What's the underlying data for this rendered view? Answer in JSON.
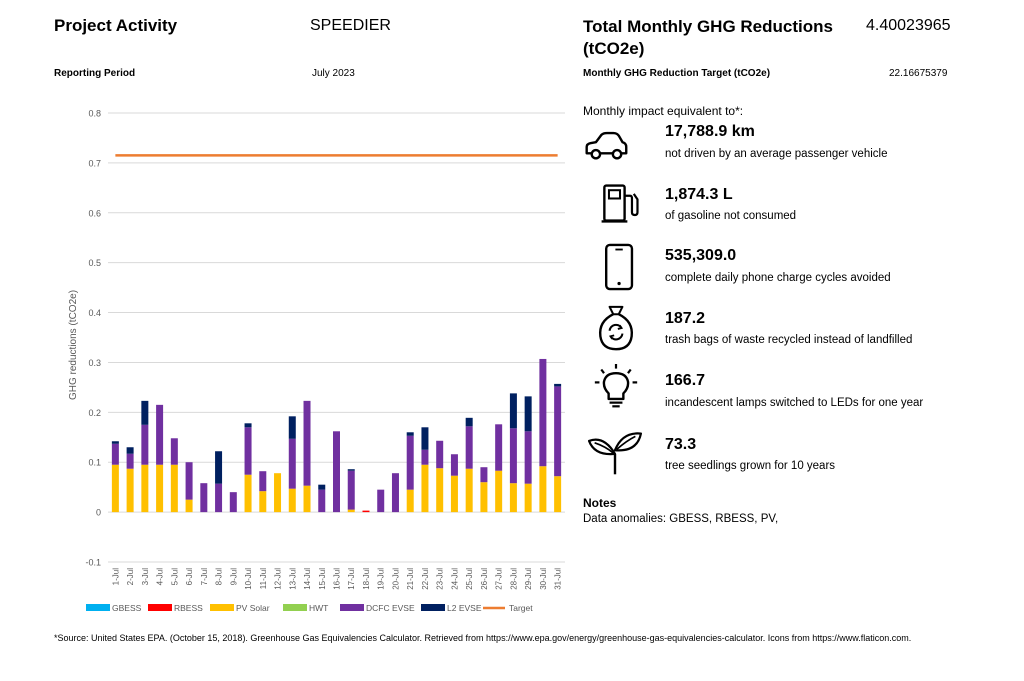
{
  "header": {
    "project_label": "Project Activity",
    "project_value": "SPEEDIER",
    "period_label": "Reporting Period",
    "period_value": "July 2023"
  },
  "summary": {
    "total_label": "Total Monthly GHG Reductions (tCO2e)",
    "total_value": "4.40023965",
    "target_label": "Monthly GHG Reduction Target (tCO2e)",
    "target_value": "22.16675379"
  },
  "impact": {
    "heading": "Monthly impact equivalent to*:",
    "items": [
      {
        "icon": "car-icon",
        "value": "17,788.9 km",
        "desc": "not driven by an average passenger vehicle"
      },
      {
        "icon": "fuel-pump-icon",
        "value": "1,874.3 L",
        "desc": "of gasoline not consumed"
      },
      {
        "icon": "phone-icon",
        "value": "535,309.0",
        "desc": "complete daily phone charge cycles avoided"
      },
      {
        "icon": "trash-bag-icon",
        "value": "187.2",
        "desc": "trash bags of waste recycled instead of landfilled"
      },
      {
        "icon": "light-bulb-icon",
        "value": "166.7",
        "desc": "incandescent lamps switched to LEDs for one year"
      },
      {
        "icon": "seedling-icon",
        "value": "73.3",
        "desc": "tree seedlings grown for 10 years"
      }
    ]
  },
  "notes": {
    "heading": "Notes",
    "text": "Data anomalies: GBESS, RBESS, PV,"
  },
  "footnote": "*Source: United States EPA. (October 15, 2018). Greenhouse Gas Equivalencies Calculator. Retrieved from https://www.epa.gov/energy/greenhouse-gas-equivalencies-calculator. Icons from https://www.flaticon.com.",
  "chart_data": {
    "type": "bar",
    "stacked": true,
    "ylabel": "GHG reductions (tCO2e)",
    "ylim": [
      -0.1,
      0.8
    ],
    "yticks": [
      "-0.1",
      "0",
      "0.1",
      "0.2",
      "0.3",
      "0.4",
      "0.5",
      "0.6",
      "0.7",
      "0.8"
    ],
    "grid": true,
    "legend_position": "bottom",
    "categories": [
      "1-Jul",
      "2-Jul",
      "3-Jul",
      "4-Jul",
      "5-Jul",
      "6-Jul",
      "7-Jul",
      "8-Jul",
      "9-Jul",
      "10-Jul",
      "11-Jul",
      "12-Jul",
      "13-Jul",
      "14-Jul",
      "15-Jul",
      "16-Jul",
      "17-Jul",
      "18-Jul",
      "19-Jul",
      "20-Jul",
      "21-Jul",
      "22-Jul",
      "23-Jul",
      "24-Jul",
      "25-Jul",
      "26-Jul",
      "27-Jul",
      "28-Jul",
      "29-Jul",
      "30-Jul",
      "31-Jul"
    ],
    "series": [
      {
        "name": "GBESS",
        "color": "#00b0f0",
        "values": [
          0,
          0,
          0,
          0,
          0,
          0,
          0,
          0,
          0,
          0,
          0,
          0,
          0,
          0,
          0,
          0,
          0,
          0,
          0,
          0,
          0,
          0,
          0,
          0,
          0,
          0,
          0,
          0,
          0,
          0,
          0
        ]
      },
      {
        "name": "RBESS",
        "color": "#ff0000",
        "values": [
          0,
          0,
          0,
          0,
          0,
          0,
          0,
          0,
          0,
          0,
          0,
          0,
          0,
          0,
          0,
          0,
          0,
          0.003,
          0,
          0,
          0,
          0,
          0,
          0,
          0,
          0,
          0,
          0,
          0,
          0,
          0
        ]
      },
      {
        "name": "PV Solar",
        "color": "#ffc000",
        "values": [
          0.095,
          0.087,
          0.095,
          0.095,
          0.095,
          0.025,
          0,
          0,
          0,
          0.075,
          0.042,
          0.078,
          0.047,
          0.053,
          0,
          0,
          0.005,
          0,
          0,
          0,
          0.045,
          0.095,
          0.088,
          0.073,
          0.087,
          0.06,
          0.083,
          0.058,
          0.057,
          0.092,
          0.072
        ]
      },
      {
        "name": "HWT",
        "color": "#92d050",
        "values": [
          0,
          0,
          0,
          0,
          0,
          0,
          0,
          0,
          0,
          0,
          0,
          0,
          0,
          0,
          0,
          0,
          0,
          0,
          0,
          0,
          0,
          0,
          0,
          0,
          0,
          0,
          0,
          0,
          0,
          0,
          0
        ]
      },
      {
        "name": "DCFC EVSE",
        "color": "#7030a0",
        "values": [
          0.042,
          0.03,
          0.08,
          0.12,
          0.053,
          0.075,
          0.058,
          0.057,
          0.04,
          0.095,
          0.04,
          0,
          0.1,
          0.17,
          0.045,
          0.162,
          0.078,
          0,
          0.045,
          0.078,
          0.108,
          0.03,
          0.055,
          0.043,
          0.085,
          0.03,
          0.093,
          0.11,
          0.105,
          0.215,
          0.18
        ]
      },
      {
        "name": "L2 EVSE",
        "color": "#002060",
        "values": [
          0.005,
          0.013,
          0.048,
          0,
          0,
          0,
          0,
          0.065,
          0,
          0.008,
          0,
          0,
          0.045,
          0,
          0.01,
          0,
          0.003,
          0,
          0,
          0,
          0.007,
          0.045,
          0,
          0,
          0.017,
          0,
          0,
          0.07,
          0.07,
          0,
          0.005
        ]
      }
    ],
    "target": {
      "name": "Target",
      "color": "#ed7d31",
      "value": 0.715
    }
  }
}
